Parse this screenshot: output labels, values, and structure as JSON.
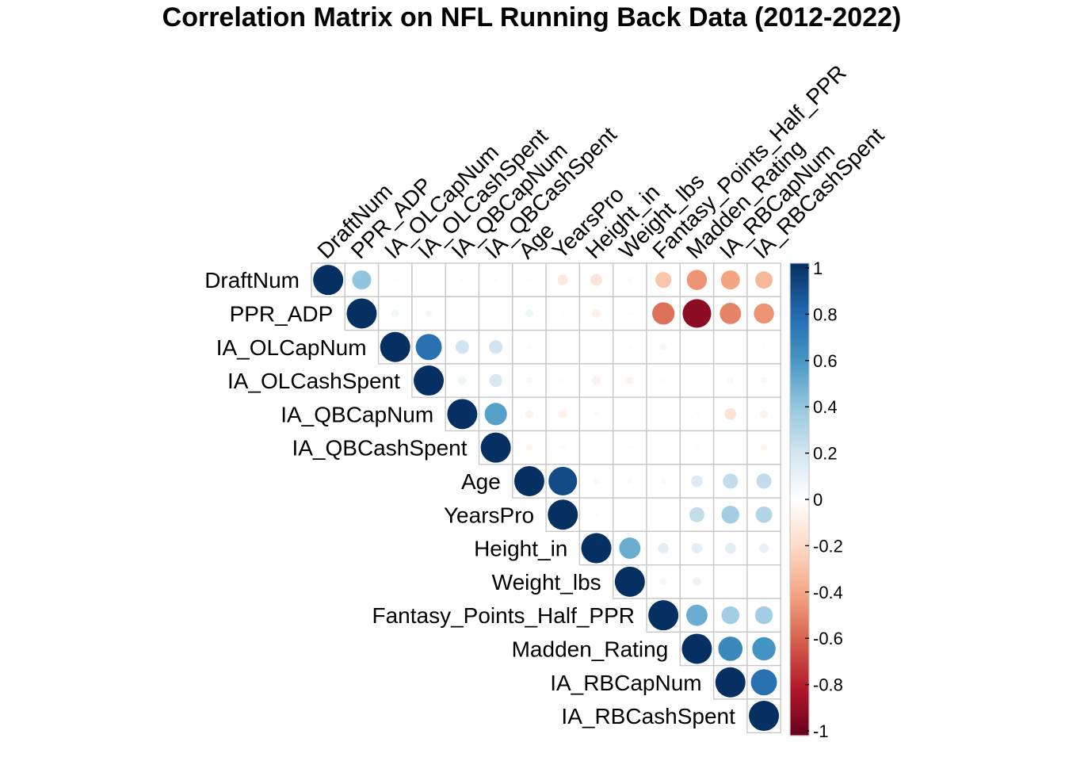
{
  "chart_data": {
    "type": "heatmap",
    "style": "correlation-circles-upper-triangle",
    "title": "Correlation Matrix on NFL Running Back Data (2012-2022)",
    "variables": [
      "DraftNum",
      "PPR_ADP",
      "IA_OLCapNum",
      "IA_OLCashSpent",
      "IA_QBCapNum",
      "IA_QBCashSpent",
      "Age",
      "YearsPro",
      "Height_in",
      "Weight_lbs",
      "Fantasy_Points_Half_PPR",
      "Madden_Rating",
      "IA_RBCapNum",
      "IA_RBCashSpent"
    ],
    "matrix": [
      [
        1,
        0.4,
        0.02,
        0,
        0.02,
        -0.02,
        -0.02,
        -0.12,
        -0.15,
        -0.03,
        -0.28,
        -0.45,
        -0.4,
        -0.33
      ],
      [
        null,
        1,
        0.06,
        0.05,
        0,
        -0.02,
        0.07,
        -0.01,
        -0.08,
        -0.02,
        -0.55,
        -0.9,
        -0.5,
        -0.45
      ],
      [
        null,
        null,
        1,
        0.75,
        0.2,
        0.2,
        -0.03,
        0,
        -0.01,
        0.02,
        0.05,
        0,
        0,
        -0.01
      ],
      [
        null,
        null,
        null,
        1,
        0.08,
        0.18,
        -0.05,
        -0.02,
        -0.08,
        -0.06,
        -0.02,
        -0.02,
        -0.05,
        -0.05
      ],
      [
        null,
        null,
        null,
        null,
        1,
        0.55,
        -0.07,
        -0.07,
        0.03,
        0,
        0.01,
        0.02,
        -0.15,
        -0.07
      ],
      [
        null,
        null,
        null,
        null,
        null,
        1,
        -0.05,
        -0.03,
        0,
        -0.02,
        -0.01,
        -0.02,
        -0.02,
        -0.05
      ],
      [
        null,
        null,
        null,
        null,
        null,
        null,
        1,
        0.9,
        0.05,
        0.03,
        -0.04,
        0.15,
        0.25,
        0.25
      ],
      [
        null,
        null,
        null,
        null,
        null,
        null,
        null,
        1,
        0.02,
        0,
        0.01,
        0.25,
        0.35,
        0.3
      ],
      [
        null,
        null,
        null,
        null,
        null,
        null,
        null,
        null,
        1,
        0.5,
        0.12,
        0.12,
        0.13,
        0.1
      ],
      [
        null,
        null,
        null,
        null,
        null,
        null,
        null,
        null,
        null,
        1,
        0.05,
        0.08,
        0.01,
        0.01
      ],
      [
        null,
        null,
        null,
        null,
        null,
        null,
        null,
        null,
        null,
        null,
        1,
        0.5,
        0.35,
        0.35
      ],
      [
        null,
        null,
        null,
        null,
        null,
        null,
        null,
        null,
        null,
        null,
        null,
        1,
        0.65,
        0.6
      ],
      [
        null,
        null,
        null,
        null,
        null,
        null,
        null,
        null,
        null,
        null,
        null,
        null,
        1,
        0.75
      ],
      [
        null,
        null,
        null,
        null,
        null,
        null,
        null,
        null,
        null,
        null,
        null,
        null,
        null,
        1
      ]
    ],
    "color_scale": {
      "range": [
        -1,
        1
      ],
      "ticks": [
        "1",
        "0.8",
        "0.6",
        "0.4",
        "0.2",
        "0",
        "-0.2",
        "-0.4",
        "-0.6",
        "-0.8",
        "-1"
      ],
      "stops": [
        "#67001F",
        "#B2182B",
        "#D6604D",
        "#F4A582",
        "#FDDBC7",
        "#FFFFFF",
        "#D1E5F0",
        "#92C5DE",
        "#4393C3",
        "#2166AC",
        "#053061"
      ]
    },
    "grid": true,
    "legend_position": "right"
  }
}
